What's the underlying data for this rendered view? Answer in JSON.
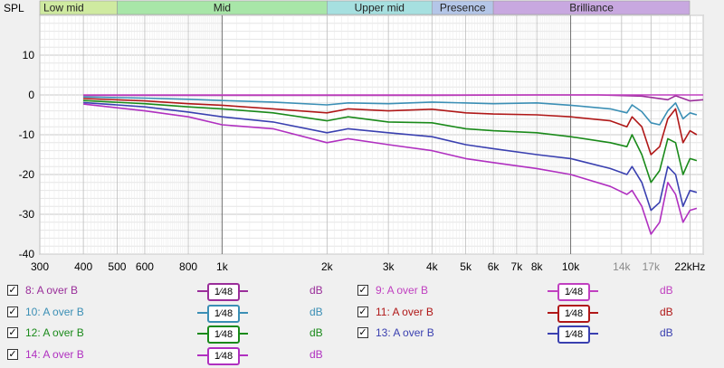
{
  "chart_data": {
    "type": "line",
    "ylabel": "SPL",
    "ylim": [
      -40,
      20
    ],
    "xlim": [
      300,
      24000
    ],
    "x_scale": "log",
    "grid": true,
    "yticks": [
      10,
      0,
      -10,
      -20,
      -30,
      -40
    ],
    "xticks": [
      {
        "v": 300,
        "l": "300"
      },
      {
        "v": 400,
        "l": "400"
      },
      {
        "v": 500,
        "l": "500"
      },
      {
        "v": 600,
        "l": "600"
      },
      {
        "v": 800,
        "l": "800"
      },
      {
        "v": 1000,
        "l": "1k"
      },
      {
        "v": 2000,
        "l": "2k"
      },
      {
        "v": 3000,
        "l": "3k"
      },
      {
        "v": 4000,
        "l": "4k"
      },
      {
        "v": 5000,
        "l": "5k"
      },
      {
        "v": 6000,
        "l": "6k"
      },
      {
        "v": 7000,
        "l": "7k"
      },
      {
        "v": 8000,
        "l": "8k"
      },
      {
        "v": 10000,
        "l": "10k"
      },
      {
        "v": 14000,
        "l": "14k"
      },
      {
        "v": 17000,
        "l": "17k"
      },
      {
        "v": 22000,
        "l": "22kHz"
      }
    ],
    "bands": [
      {
        "label": "Low mid",
        "from": 300,
        "to": 500,
        "color": "#cfeaa0"
      },
      {
        "label": "Mid",
        "from": 500,
        "to": 2000,
        "color": "#a8e6a8"
      },
      {
        "label": "Upper mid",
        "from": 2000,
        "to": 4000,
        "color": "#a6e0e0"
      },
      {
        "label": "Presence",
        "from": 4000,
        "to": 6000,
        "color": "#b4c6e8"
      },
      {
        "label": "Brilliance",
        "from": 6000,
        "to": 24000,
        "color": "#c8a8e0"
      }
    ],
    "series": [
      {
        "name": "8: A over B",
        "color": "#9a2e9a",
        "points": [
          [
            400,
            -0.1
          ],
          [
            600,
            -0.1
          ],
          [
            1000,
            -0.1
          ],
          [
            2000,
            -0.1
          ],
          [
            4000,
            -0.1
          ],
          [
            8000,
            0
          ],
          [
            12000,
            0
          ],
          [
            16000,
            -0.3
          ],
          [
            19000,
            -1.2
          ],
          [
            20000,
            -0.2
          ],
          [
            22000,
            -1.5
          ],
          [
            24000,
            -1.2
          ]
        ]
      },
      {
        "name": "9: A over B",
        "color": "#c040c0",
        "points": [
          [
            400,
            0
          ],
          [
            1000,
            0
          ],
          [
            2000,
            0
          ],
          [
            4000,
            0
          ],
          [
            10000,
            0
          ],
          [
            24000,
            0
          ]
        ]
      },
      {
        "name": "10: A over B",
        "color": "#3b8fb5",
        "points": [
          [
            400,
            -0.5
          ],
          [
            600,
            -0.8
          ],
          [
            800,
            -1.1
          ],
          [
            1000,
            -1.4
          ],
          [
            1400,
            -1.8
          ],
          [
            2000,
            -2.5
          ],
          [
            2300,
            -2.0
          ],
          [
            3000,
            -2.2
          ],
          [
            4000,
            -1.8
          ],
          [
            6000,
            -2.2
          ],
          [
            8000,
            -2.0
          ],
          [
            10000,
            -2.6
          ],
          [
            13000,
            -3.5
          ],
          [
            14500,
            -4.5
          ],
          [
            15000,
            -2.5
          ],
          [
            16000,
            -4.2
          ],
          [
            17000,
            -7.0
          ],
          [
            18000,
            -7.5
          ],
          [
            19000,
            -4.0
          ],
          [
            20000,
            -2.0
          ],
          [
            21000,
            -6.0
          ],
          [
            22000,
            -4.5
          ],
          [
            23000,
            -5.0
          ]
        ]
      },
      {
        "name": "11: A over B",
        "color": "#b01818",
        "points": [
          [
            400,
            -0.9
          ],
          [
            600,
            -1.5
          ],
          [
            800,
            -2.2
          ],
          [
            1000,
            -2.6
          ],
          [
            1400,
            -3.5
          ],
          [
            2000,
            -4.5
          ],
          [
            2300,
            -3.5
          ],
          [
            3000,
            -4.0
          ],
          [
            4000,
            -3.6
          ],
          [
            5000,
            -4.5
          ],
          [
            6000,
            -4.8
          ],
          [
            8000,
            -5.0
          ],
          [
            10000,
            -5.5
          ],
          [
            13000,
            -6.5
          ],
          [
            14500,
            -8.0
          ],
          [
            15000,
            -5.5
          ],
          [
            16000,
            -8.0
          ],
          [
            17000,
            -15.0
          ],
          [
            18000,
            -13.0
          ],
          [
            19000,
            -6.0
          ],
          [
            20000,
            -3.5
          ],
          [
            21000,
            -12.0
          ],
          [
            22000,
            -9.0
          ],
          [
            23000,
            -10.0
          ]
        ]
      },
      {
        "name": "12: A over B",
        "color": "#1a8a1a",
        "points": [
          [
            400,
            -1.4
          ],
          [
            600,
            -2.2
          ],
          [
            800,
            -3.0
          ],
          [
            1000,
            -3.5
          ],
          [
            1400,
            -4.5
          ],
          [
            2000,
            -6.5
          ],
          [
            2300,
            -5.5
          ],
          [
            3000,
            -6.8
          ],
          [
            4000,
            -7.0
          ],
          [
            5000,
            -8.5
          ],
          [
            6000,
            -9.0
          ],
          [
            8000,
            -9.5
          ],
          [
            10000,
            -10.5
          ],
          [
            13000,
            -12.0
          ],
          [
            14500,
            -13.0
          ],
          [
            15000,
            -10.0
          ],
          [
            16000,
            -15.0
          ],
          [
            17000,
            -22.0
          ],
          [
            18000,
            -19.0
          ],
          [
            19000,
            -11.0
          ],
          [
            20000,
            -12.0
          ],
          [
            21000,
            -20.0
          ],
          [
            22000,
            -16.0
          ],
          [
            23000,
            -16.5
          ]
        ]
      },
      {
        "name": "13: A over B",
        "color": "#3a40b0",
        "points": [
          [
            400,
            -1.9
          ],
          [
            600,
            -3.0
          ],
          [
            800,
            -4.3
          ],
          [
            1000,
            -5.5
          ],
          [
            1400,
            -6.8
          ],
          [
            2000,
            -9.5
          ],
          [
            2300,
            -8.5
          ],
          [
            3000,
            -9.5
          ],
          [
            4000,
            -10.5
          ],
          [
            5000,
            -12.5
          ],
          [
            6000,
            -13.5
          ],
          [
            8000,
            -15.0
          ],
          [
            10000,
            -16.0
          ],
          [
            13000,
            -18.5
          ],
          [
            14500,
            -20.0
          ],
          [
            15000,
            -18.0
          ],
          [
            16000,
            -22.0
          ],
          [
            17000,
            -29.0
          ],
          [
            18000,
            -27.0
          ],
          [
            19000,
            -18.0
          ],
          [
            20000,
            -20.0
          ],
          [
            21000,
            -28.0
          ],
          [
            22000,
            -24.0
          ],
          [
            23000,
            -24.5
          ]
        ]
      },
      {
        "name": "14: A over B",
        "color": "#b030c0",
        "points": [
          [
            400,
            -2.3
          ],
          [
            600,
            -4.0
          ],
          [
            800,
            -5.5
          ],
          [
            1000,
            -7.5
          ],
          [
            1400,
            -8.5
          ],
          [
            2000,
            -12.0
          ],
          [
            2300,
            -11.0
          ],
          [
            3000,
            -12.5
          ],
          [
            4000,
            -14.0
          ],
          [
            5000,
            -16.0
          ],
          [
            6000,
            -17.0
          ],
          [
            8000,
            -18.5
          ],
          [
            10000,
            -20.0
          ],
          [
            13000,
            -23.0
          ],
          [
            14500,
            -25.0
          ],
          [
            15000,
            -24.0
          ],
          [
            16000,
            -28.0
          ],
          [
            17000,
            -35.0
          ],
          [
            18000,
            -32.0
          ],
          [
            19000,
            -22.0
          ],
          [
            20000,
            -25.0
          ],
          [
            21000,
            -32.0
          ],
          [
            22000,
            -29.0
          ],
          [
            23000,
            -28.5
          ]
        ]
      }
    ]
  },
  "legend": {
    "check_mark": "✓",
    "smoothing": "1⁄48",
    "unit": "dB",
    "items": [
      {
        "label": "8: A over B",
        "color": "#9a2e9a"
      },
      {
        "label": "9: A over B",
        "color": "#c040c0"
      },
      {
        "label": "10: A over B",
        "color": "#3b8fb5"
      },
      {
        "label": "11: A over B",
        "color": "#b01818"
      },
      {
        "label": "12: A over B",
        "color": "#1a8a1a"
      },
      {
        "label": "13: A over B",
        "color": "#3a40b0"
      },
      {
        "label": "14: A over B",
        "color": "#b030c0"
      }
    ]
  }
}
